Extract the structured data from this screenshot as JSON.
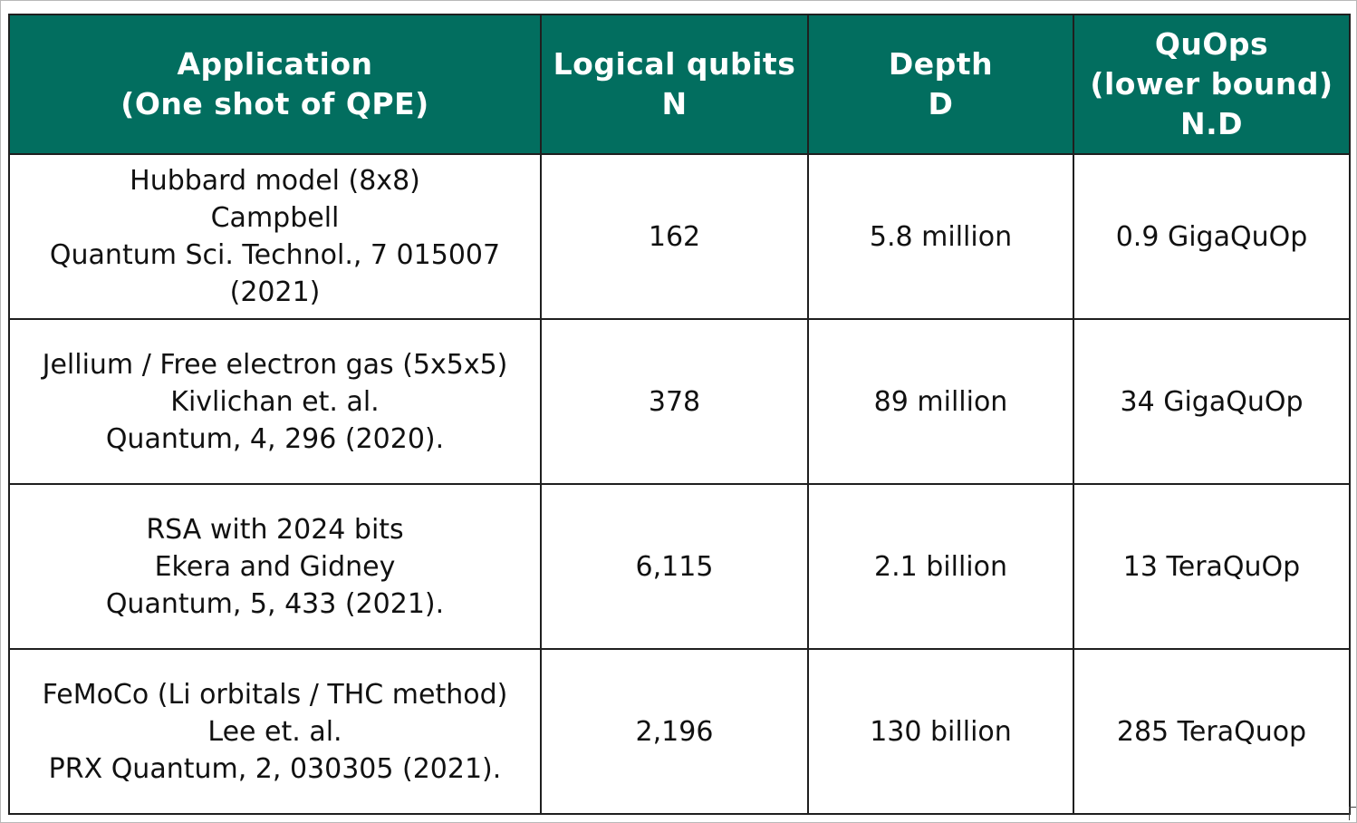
{
  "table": {
    "headers": [
      {
        "lines": [
          "Application",
          "(One shot of QPE)"
        ]
      },
      {
        "lines": [
          "Logical qubits",
          "N"
        ]
      },
      {
        "lines": [
          "Depth",
          "D"
        ]
      },
      {
        "lines": [
          "QuOps",
          "(lower bound)",
          "N.D"
        ]
      }
    ],
    "rows": [
      {
        "application": [
          "Hubbard model (8x8)",
          "Campbell",
          "Quantum Sci. Technol., 7 015007",
          "(2021)"
        ],
        "logical_qubits": "162",
        "depth": "5.8 million",
        "quops": "0.9 GigaQuOp"
      },
      {
        "application": [
          "Jellium / Free electron gas (5x5x5)",
          "Kivlichan et. al.",
          "Quantum, 4, 296 (2020)."
        ],
        "logical_qubits": "378",
        "depth": "89 million",
        "quops": "34 GigaQuOp"
      },
      {
        "application": [
          "RSA with 2024 bits",
          "Ekera and Gidney",
          "Quantum, 5, 433 (2021)."
        ],
        "logical_qubits": "6,115",
        "depth": "2.1 billion",
        "quops": "13 TeraQuOp"
      },
      {
        "application": [
          "FeMoCo (Li orbitals / THC method)",
          "Lee et. al.",
          "PRX Quantum, 2, 030305 (2021)."
        ],
        "logical_qubits": "2,196",
        "depth": "130 billion",
        "quops": "285 TeraQuop"
      }
    ]
  }
}
